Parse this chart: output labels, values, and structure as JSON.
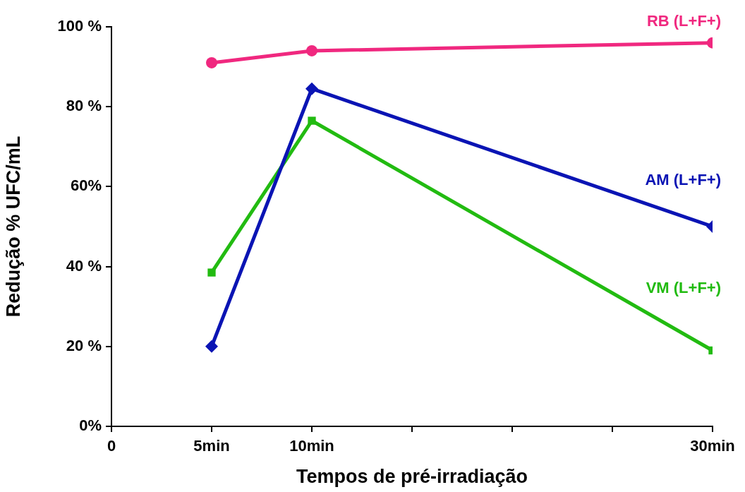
{
  "chart_data": {
    "type": "line",
    "xlabel": "Tempos de pré-irradiação",
    "ylabel": "Redução % UFC/mL",
    "x": [
      5,
      10,
      30
    ],
    "series": [
      {
        "name": "RB (L+F+)",
        "color": "#f0287f",
        "marker": "circle",
        "values": [
          91,
          94,
          96
        ]
      },
      {
        "name": "AM (L+F+)",
        "color": "#0a14b4",
        "marker": "diamond",
        "values": [
          20,
          84.5,
          50
        ]
      },
      {
        "name": "VM (L+F+)",
        "color": "#22bb11",
        "marker": "square",
        "values": [
          38.5,
          76.5,
          19
        ]
      }
    ],
    "xlim": [
      0,
      30
    ],
    "xticks": [
      0,
      {
        "value": 5,
        "label": "5min"
      },
      {
        "value": 10,
        "label": "10min"
      },
      {
        "value": 15,
        "label": null
      },
      {
        "value": 20,
        "label": null
      },
      {
        "value": 25,
        "label": null
      },
      {
        "value": 30,
        "label": "30min"
      }
    ],
    "ylim": [
      0,
      100
    ],
    "yticks": [
      {
        "value": 0,
        "label": "0%"
      },
      {
        "value": 20,
        "label": "20 %"
      },
      {
        "value": 40,
        "label": "40 %"
      },
      {
        "value": 60,
        "label": "60%"
      },
      {
        "value": 80,
        "label": "80 %"
      },
      {
        "value": 100,
        "label": "100 %"
      }
    ],
    "grid": false,
    "legend": false,
    "line_style": "solid"
  }
}
